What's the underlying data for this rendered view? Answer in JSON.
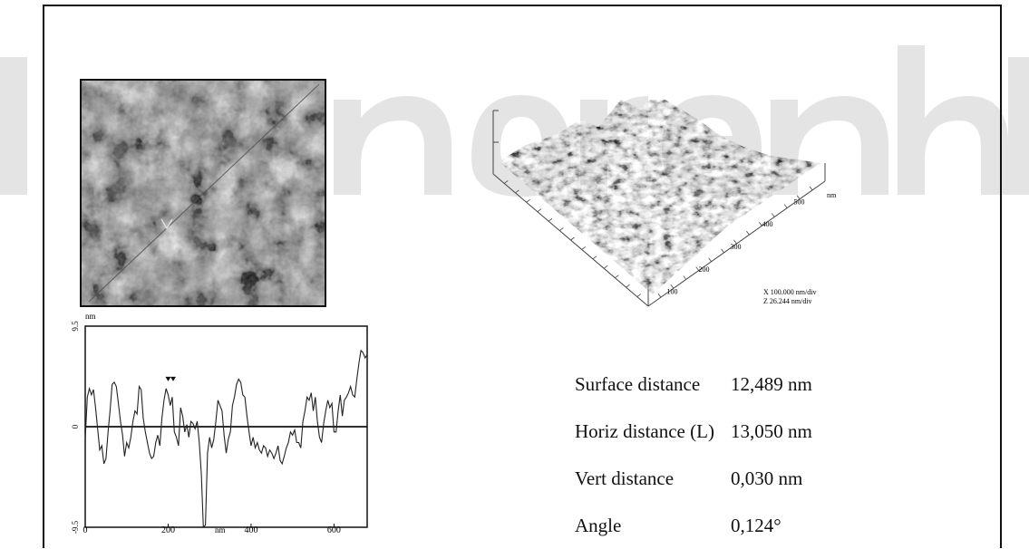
{
  "colors": {
    "frame": "#111111",
    "watermark": "#e4e4e4"
  },
  "afm_2d": {
    "caption": ""
  },
  "afm_3d": {
    "z_axis_unit": "nm",
    "x_ticks": [
      "100",
      "200",
      "300",
      "400",
      "500"
    ],
    "scale_x": "X 100.000 nm/div",
    "scale_z": "Z 26.244 nm/div"
  },
  "chart_data": {
    "type": "line",
    "title": "",
    "xlabel": "nm",
    "ylabel": "nm",
    "xlim": [
      0,
      680
    ],
    "ylim": [
      -9.5,
      9.5
    ],
    "x_ticks": [
      "0",
      "200",
      "400",
      "600"
    ],
    "y_ticks": [
      "9.5",
      "0",
      "-9.5"
    ],
    "markers": [
      200,
      212
    ],
    "series": [
      {
        "x": [
          0,
          5,
          10,
          15,
          20,
          25,
          30,
          35,
          40,
          45,
          50,
          55,
          60,
          65,
          70,
          75,
          80,
          85,
          90,
          95,
          100,
          105,
          110,
          115,
          120,
          125,
          130,
          135,
          140,
          145,
          150,
          155,
          160,
          165,
          170,
          175,
          180,
          185,
          190,
          195,
          200,
          205,
          210,
          215,
          220,
          225,
          230,
          235,
          240,
          245,
          250,
          255,
          260,
          265,
          270,
          275,
          280,
          285,
          290,
          295,
          300,
          305,
          310,
          315,
          320,
          325,
          330,
          335,
          340,
          345,
          350,
          355,
          360,
          365,
          370,
          375,
          380,
          385,
          390,
          395,
          400,
          405,
          410,
          415,
          420,
          425,
          430,
          435,
          440,
          445,
          450,
          455,
          460,
          465,
          470,
          475,
          480,
          485,
          490,
          495,
          500,
          505,
          510,
          515,
          520,
          525,
          530,
          535,
          540,
          545,
          550,
          555,
          560,
          565,
          570,
          575,
          580,
          585,
          590,
          595,
          600,
          605,
          610,
          615,
          620,
          625,
          630,
          635,
          640,
          645,
          650,
          655,
          660,
          665,
          670,
          675,
          680
        ],
        "y": [
          -1.2,
          2.8,
          3.6,
          3.0,
          3.5,
          1.8,
          -0.2,
          -2.2,
          -1.8,
          -3.5,
          -3.0,
          -0.5,
          1.5,
          4.0,
          4.2,
          3.8,
          2.2,
          0.5,
          -0.8,
          -2.8,
          -1.5,
          -2.0,
          -1.0,
          0.5,
          1.5,
          1.2,
          3.8,
          3.5,
          0.8,
          -0.5,
          -1.5,
          -2.5,
          -3.0,
          -2.8,
          -1.5,
          -0.8,
          -1.8,
          0.8,
          2.5,
          3.6,
          3.0,
          2.0,
          2.8,
          -0.5,
          -1.0,
          -1.8,
          1.8,
          1.0,
          -0.5,
          0.2,
          -1.0,
          0.5,
          0.3,
          -0.2,
          0.5,
          -1.5,
          -4.5,
          -9.5,
          -9.3,
          -2.5,
          -1.0,
          -2.0,
          -1.2,
          0.5,
          2.5,
          2.0,
          1.5,
          -0.8,
          -2.5,
          -1.2,
          -0.5,
          2.0,
          2.8,
          4.0,
          4.5,
          4.2,
          3.0,
          2.8,
          1.0,
          -0.5,
          -1.8,
          -1.0,
          -2.0,
          -1.5,
          -2.2,
          -2.5,
          -1.8,
          -2.0,
          -2.8,
          -2.2,
          -2.5,
          -3.0,
          -2.5,
          -1.8,
          -3.2,
          -3.5,
          -2.8,
          -2.0,
          -1.5,
          -0.5,
          -0.8,
          -0.3,
          -1.5,
          -1.5,
          -2.0,
          0.5,
          1.5,
          2.8,
          2.5,
          3.2,
          1.5,
          2.8,
          0.5,
          -1.0,
          -1.5,
          0.3,
          1.5,
          2.5,
          1.8,
          2.2,
          -0.5,
          -0.5,
          1.5,
          3.0,
          1.0,
          2.5,
          2.8,
          3.2,
          3.8,
          3.0,
          2.8,
          4.5,
          6.0,
          7.2,
          7.0,
          6.5,
          6.8
        ]
      }
    ]
  },
  "stats": [
    {
      "label": "Surface distance",
      "value": "12,489 nm"
    },
    {
      "label": "Horiz distance (L)",
      "value": "13,050 nm"
    },
    {
      "label": "Vert distance",
      "value": "0,030 nm"
    },
    {
      "label": "Angle",
      "value": "0,124°"
    }
  ]
}
